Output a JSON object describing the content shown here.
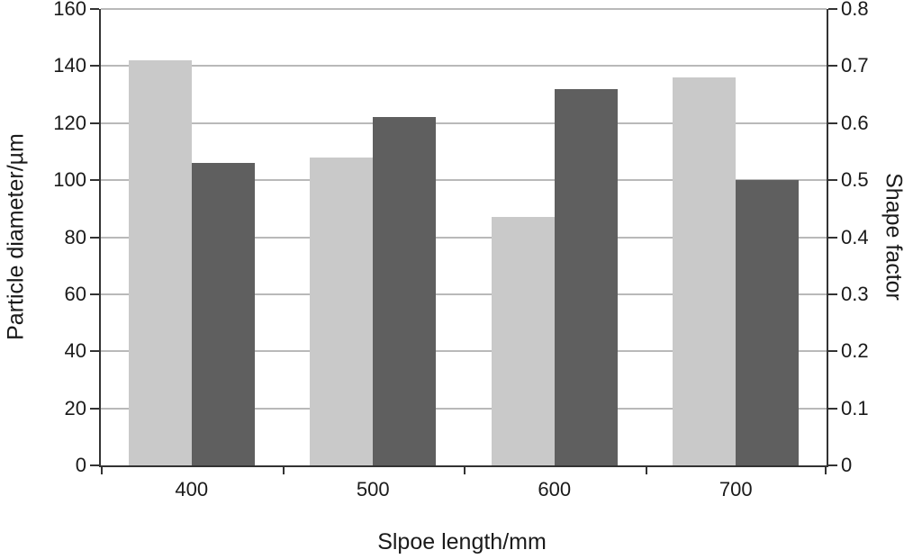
{
  "chart_data": {
    "type": "bar",
    "title": "",
    "xlabel": "Slpoe length/mm",
    "ylabel_left": "Particle diameter/µm",
    "ylabel_right": "Shape factor",
    "categories": [
      "400",
      "500",
      "600",
      "700"
    ],
    "series": [
      {
        "name": "particle-diameter",
        "axis": "left",
        "color": "#c9c9c9",
        "values": [
          142,
          108,
          87,
          136
        ]
      },
      {
        "name": "shape-factor",
        "axis": "right",
        "color": "#5f5f5f",
        "values": [
          0.53,
          0.61,
          0.66,
          0.5
        ]
      }
    ],
    "left_axis": {
      "min": 0,
      "max": 160,
      "ticks": [
        0,
        20,
        40,
        60,
        80,
        100,
        120,
        140,
        160
      ]
    },
    "right_axis": {
      "min": 0,
      "max": 0.8,
      "tick_labels": [
        "0",
        "0.1",
        "0.2",
        "0.3",
        "0.4",
        "0.5",
        "0.6",
        "0.7",
        "0.8"
      ]
    },
    "grid": "horizontal",
    "legend": "none"
  },
  "style": {
    "grid_color": "#b9b9b9",
    "spine_color": "#333333",
    "text_color": "#1a1a1a"
  }
}
